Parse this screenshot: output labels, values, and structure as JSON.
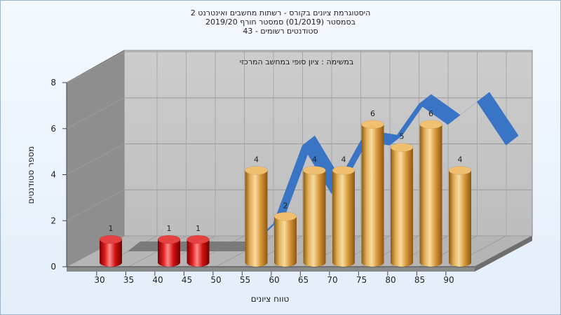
{
  "title_lines": [
    "היסטוגרמת ציונים בקורס - רשתות מחשבים ואינטרנט 2",
    "בסמסטר  (01/2019)  סמסטר חורף  2019/20",
    "סטודנטים רשומים - 43"
  ],
  "chart_data": {
    "type": "bar",
    "title": "היסטוגרמת ציונים בקורס - רשתות מחשבים ואינטרנט 2",
    "xlabel": "טווח ציונים",
    "ylabel": "מספר סטודנטים",
    "annotation": "במשימה : ציון סופי במחשב המרכזי",
    "ylim": [
      0,
      8
    ],
    "yticks": [
      0,
      2,
      4,
      6,
      8
    ],
    "xticks": [
      "30",
      "35",
      "40",
      "45",
      "50",
      "55",
      "60",
      "65",
      "70",
      "75",
      "80",
      "85",
      "90"
    ],
    "bars": [
      {
        "x": 30,
        "value": 1,
        "color": "red"
      },
      {
        "x": 40,
        "value": 1,
        "color": "red"
      },
      {
        "x": 45,
        "value": 1,
        "color": "red"
      },
      {
        "x": 55,
        "value": 4,
        "color": "gold"
      },
      {
        "x": 60,
        "value": 2,
        "color": "gold"
      },
      {
        "x": 65,
        "value": 4,
        "color": "gold"
      },
      {
        "x": 70,
        "value": 4,
        "color": "gold"
      },
      {
        "x": 75,
        "value": 6,
        "color": "gold"
      },
      {
        "x": 80,
        "value": 5,
        "color": "gold"
      },
      {
        "x": 85,
        "value": 6,
        "color": "gold"
      },
      {
        "x": 90,
        "value": 4,
        "color": "gold"
      }
    ],
    "trend": {
      "x": [
        30,
        35,
        40,
        45,
        50,
        55,
        60,
        65,
        70,
        75,
        80,
        85,
        90,
        95
      ],
      "y": [
        0,
        0,
        0,
        0,
        0,
        1.2,
        4.6,
        2.5,
        4.8,
        4.6,
        6.4,
        5.5,
        6.5,
        4.6
      ]
    },
    "grid": true,
    "colors": {
      "red": "#d81818",
      "gold": "#e0a84c",
      "trend_blue": "#3a74c4",
      "trend_gray": "#7a7a7a",
      "back_wall": "#c2c2c2",
      "side_wall": "#8e8e8e",
      "floor": "#b8b8b8"
    }
  }
}
